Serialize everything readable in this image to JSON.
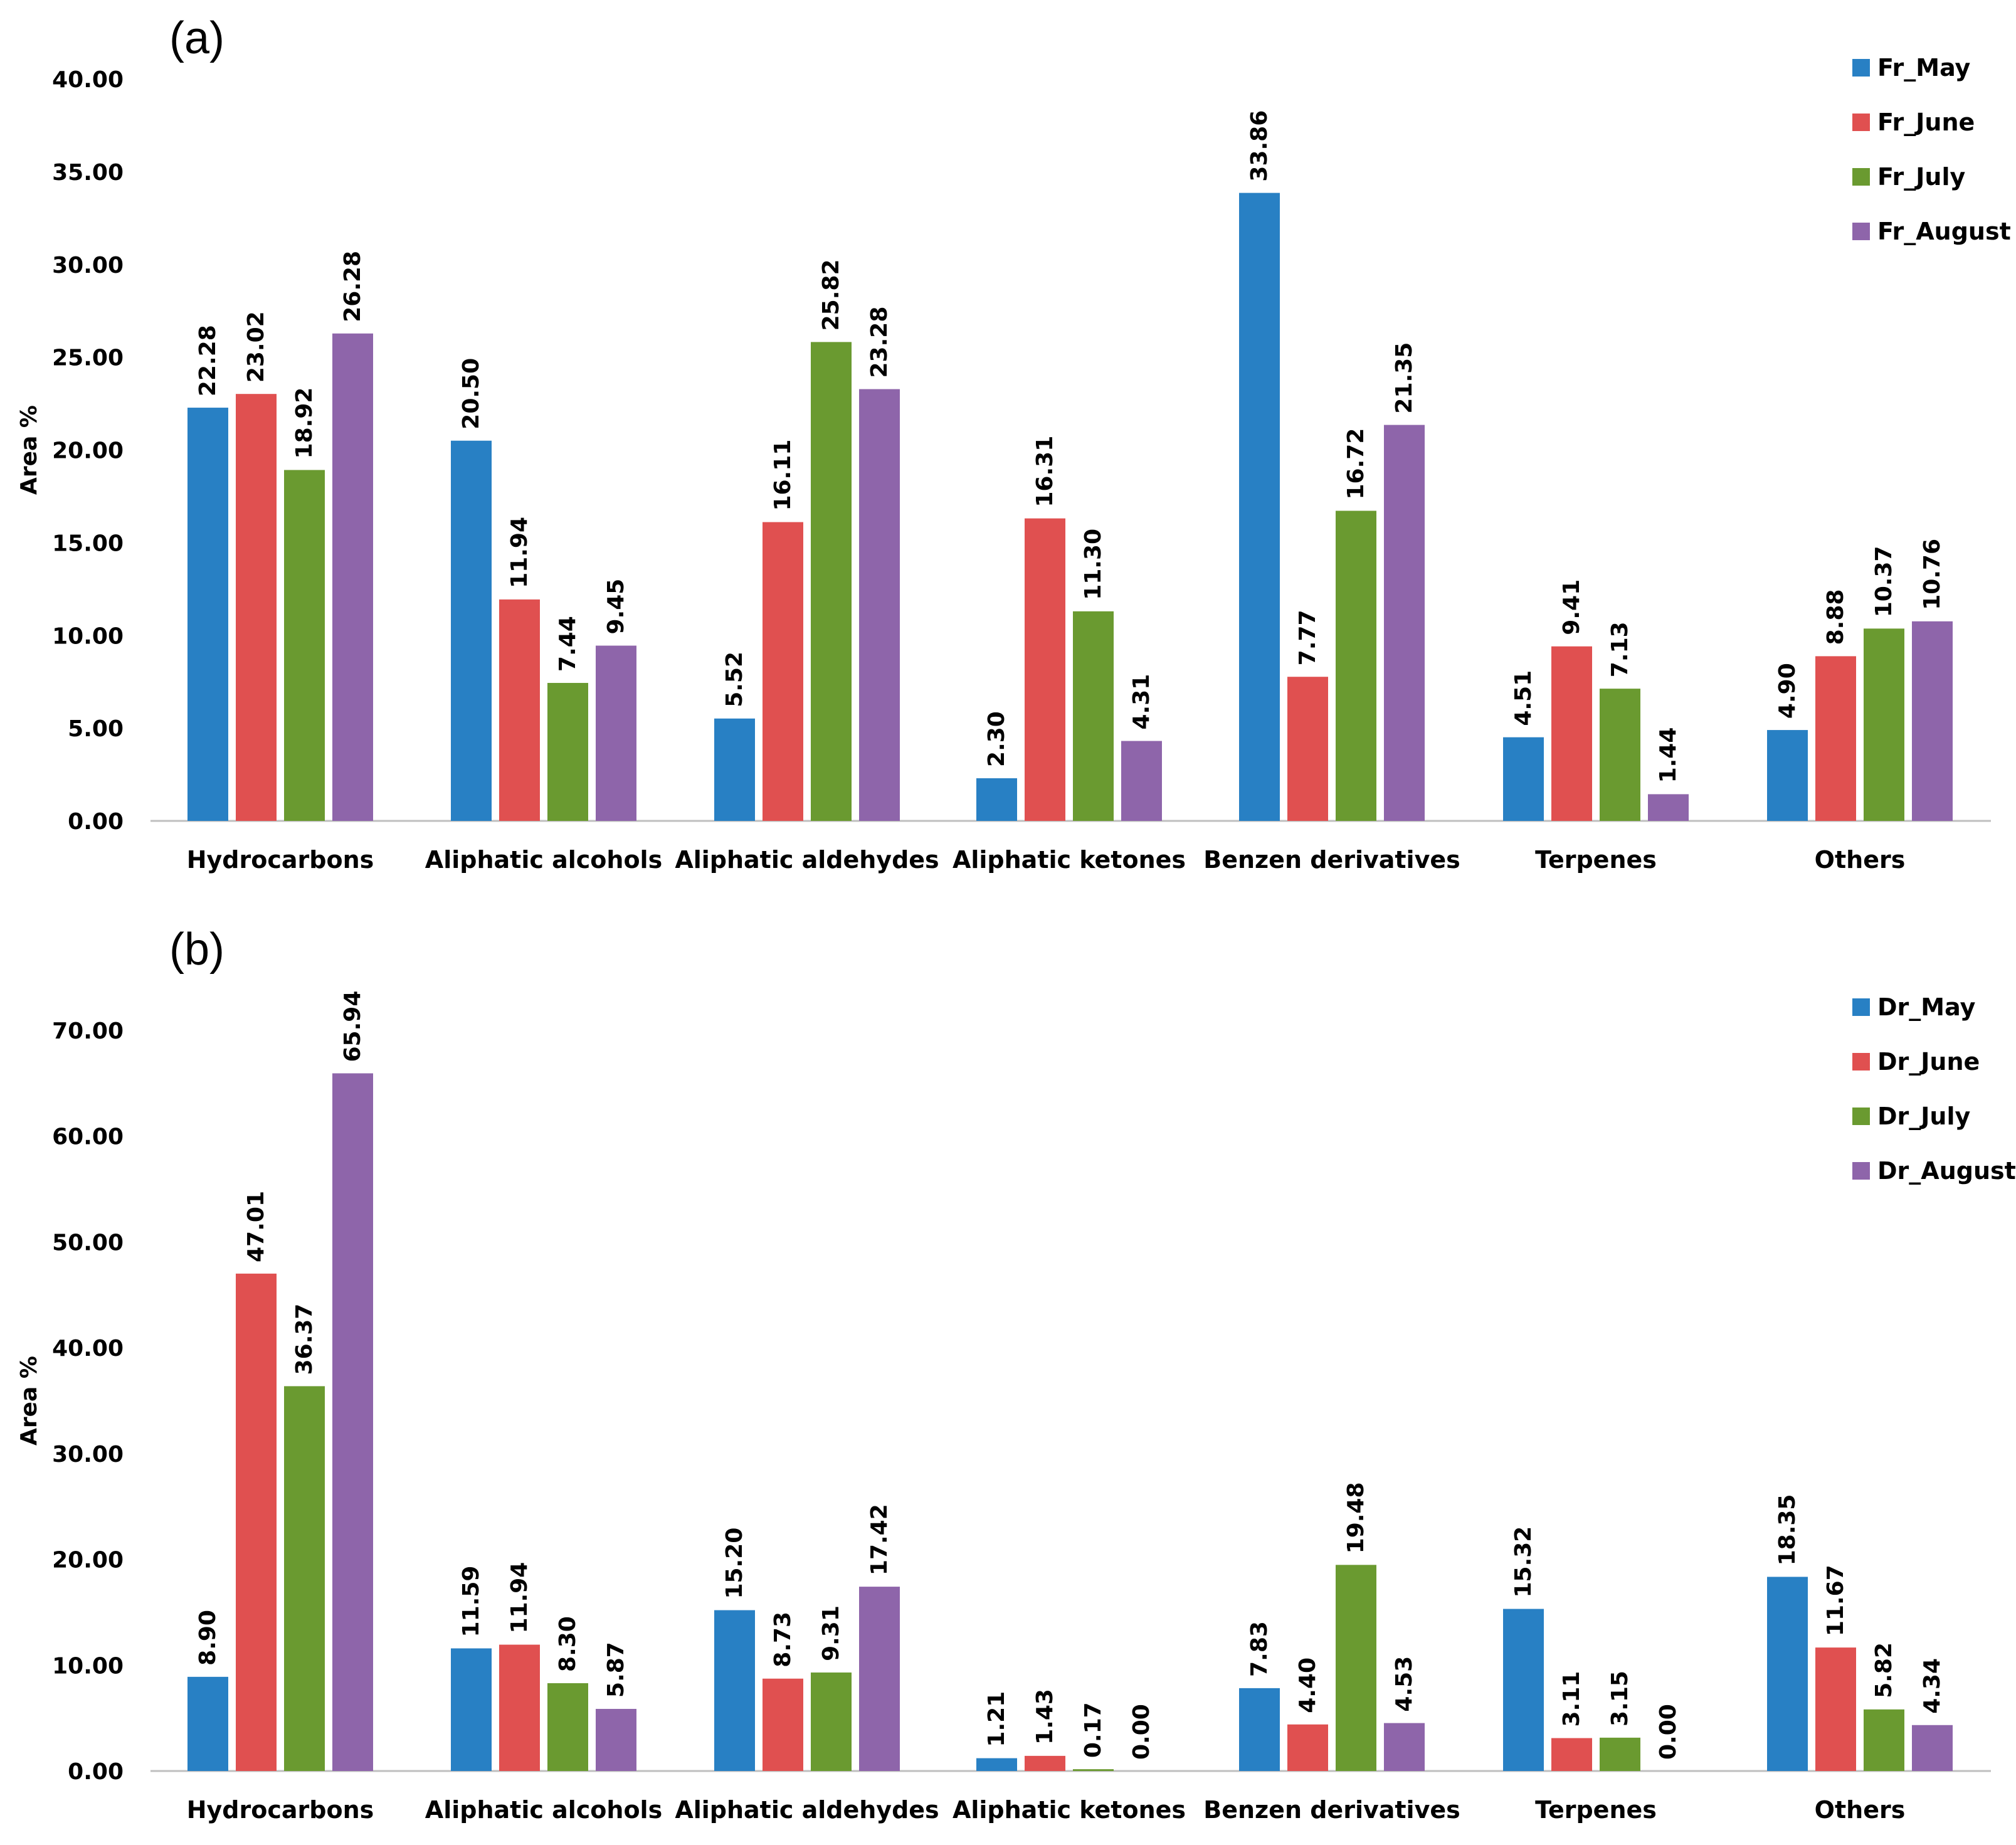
{
  "chart_data": [
    {
      "type": "bar",
      "panel_label": "(a)",
      "ylabel": "Area %",
      "ylim": [
        0,
        40
      ],
      "ytick_step": 5,
      "tick_labels": [
        "0.00",
        "5.00",
        "10.00",
        "15.00",
        "20.00",
        "25.00",
        "30.00",
        "35.00",
        "40.00"
      ],
      "categories": [
        "Hydrocarbons",
        "Aliphatic alcohols",
        "Aliphatic aldehydes",
        "Aliphatic ketones",
        "Benzen derivatives",
        "Terpenes",
        "Others"
      ],
      "series": [
        {
          "name": "Fr_May",
          "color": "#2880C4",
          "values": [
            22.28,
            20.5,
            5.52,
            2.3,
            33.86,
            4.51,
            4.9
          ],
          "labels": [
            "22.28",
            "20.50",
            "5.52",
            "2.30",
            "33.86",
            "4.51",
            "4.90"
          ]
        },
        {
          "name": "Fr_June",
          "color": "#E05050",
          "values": [
            23.02,
            11.94,
            16.11,
            16.31,
            7.77,
            9.41,
            8.88
          ],
          "labels": [
            "23.02",
            "11.94",
            "16.11",
            "16.31",
            "7.77",
            "9.41",
            "8.88"
          ]
        },
        {
          "name": "Fr_July",
          "color": "#6A9A30",
          "values": [
            18.92,
            7.44,
            25.82,
            11.3,
            16.72,
            7.13,
            10.37
          ],
          "labels": [
            "18.92",
            "7.44",
            "25.82",
            "11.30",
            "16.72",
            "7.13",
            "10.37"
          ]
        },
        {
          "name": "Fr_August",
          "color": "#8E65AA",
          "values": [
            26.28,
            9.45,
            23.28,
            4.31,
            21.35,
            1.44,
            10.76
          ],
          "labels": [
            "26.28",
            "9.45",
            "23.28",
            "4.31",
            "21.35",
            "1.44",
            "10.76"
          ]
        }
      ]
    },
    {
      "type": "bar",
      "panel_label": "(b)",
      "ylabel": "Area %",
      "ylim": [
        0,
        70
      ],
      "ytick_step": 10,
      "tick_labels": [
        "0.00",
        "10.00",
        "20.00",
        "30.00",
        "40.00",
        "50.00",
        "60.00",
        "70.00"
      ],
      "categories": [
        "Hydrocarbons",
        "Aliphatic alcohols",
        "Aliphatic aldehydes",
        "Aliphatic ketones",
        "Benzen derivatives",
        "Terpenes",
        "Others"
      ],
      "series": [
        {
          "name": "Dr_May",
          "color": "#2880C4",
          "values": [
            8.9,
            11.59,
            15.2,
            1.21,
            7.83,
            15.32,
            18.35
          ],
          "labels": [
            "8.90",
            "11.59",
            "15.20",
            "1.21",
            "7.83",
            "15.32",
            "18.35"
          ]
        },
        {
          "name": "Dr_June",
          "color": "#E05050",
          "values": [
            47.01,
            11.94,
            8.73,
            1.43,
            4.4,
            3.11,
            11.67
          ],
          "labels": [
            "47.01",
            "11.94",
            "8.73",
            "1.43",
            "4.40",
            "3.11",
            "11.67"
          ]
        },
        {
          "name": "Dr_July",
          "color": "#6A9A30",
          "values": [
            36.37,
            8.3,
            9.31,
            0.17,
            19.48,
            3.15,
            5.82
          ],
          "labels": [
            "36.37",
            "8.30",
            "9.31",
            "0.17",
            "19.48",
            "3.15",
            "5.82"
          ]
        },
        {
          "name": "Dr_August",
          "color": "#8E65AA",
          "values": [
            65.94,
            5.87,
            17.42,
            0.0,
            4.53,
            0.0,
            4.34
          ],
          "labels": [
            "65.94",
            "5.87",
            "17.42",
            "0.00",
            "4.53",
            "0.00",
            "4.34"
          ]
        }
      ]
    }
  ]
}
